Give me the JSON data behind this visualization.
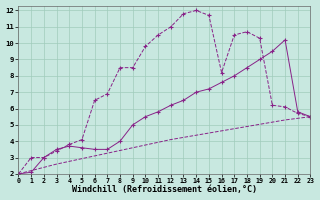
{
  "background_color": "#c8e8e0",
  "grid_color": "#a0ccbc",
  "line_color": "#882288",
  "xlim": [
    0,
    23
  ],
  "ylim": [
    2,
    12.3
  ],
  "xlabel": "Windchill (Refroidissement éolien,°C)",
  "xlabel_fontsize": 6.0,
  "xticks": [
    0,
    1,
    2,
    3,
    4,
    5,
    6,
    7,
    8,
    9,
    10,
    11,
    12,
    13,
    14,
    15,
    16,
    17,
    18,
    19,
    20,
    21,
    22,
    23
  ],
  "yticks": [
    2,
    3,
    4,
    5,
    6,
    7,
    8,
    9,
    10,
    11,
    12
  ],
  "curve1_x": [
    0,
    1,
    2,
    3,
    4,
    5,
    6,
    7,
    8,
    9,
    10,
    11,
    12,
    13,
    14,
    15,
    16,
    17,
    18,
    19,
    20,
    21,
    22,
    23
  ],
  "curve1_y": [
    2,
    3,
    3,
    3.4,
    3.8,
    4.1,
    6.5,
    6.9,
    8.5,
    8.5,
    9.8,
    10.5,
    11.0,
    11.8,
    12.0,
    11.7,
    8.2,
    10.5,
    10.7,
    10.3,
    6.2,
    6.1,
    5.7,
    5.5
  ],
  "curve2_x": [
    0,
    1,
    2,
    3,
    4,
    5,
    6,
    7,
    8,
    9,
    10,
    11,
    12,
    13,
    14,
    15,
    16,
    17,
    18,
    19,
    20,
    21,
    22,
    23
  ],
  "curve2_y": [
    2,
    2.1,
    3.0,
    3.5,
    3.7,
    3.6,
    3.5,
    3.5,
    4.0,
    5.0,
    5.5,
    5.8,
    6.2,
    6.5,
    7.0,
    7.2,
    7.6,
    8.0,
    8.5,
    9.0,
    9.5,
    10.2,
    5.8,
    5.5
  ],
  "curve3_x": [
    0,
    3,
    6,
    9,
    12,
    15,
    18,
    21,
    23
  ],
  "curve3_y": [
    2.0,
    2.6,
    3.1,
    3.6,
    4.1,
    4.5,
    4.9,
    5.3,
    5.5
  ]
}
